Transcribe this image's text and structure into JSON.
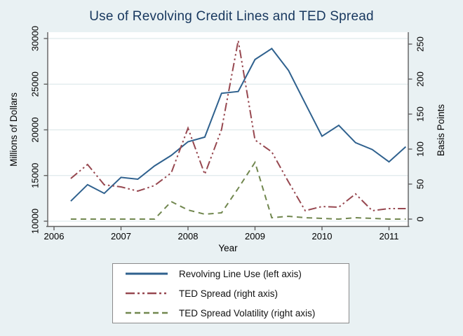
{
  "title": "Use of Revolving Credit Lines and TED Spread",
  "colors": {
    "background": "#e9f1f3",
    "plot_background": "#ffffff",
    "grid": "#dfe9ec",
    "axis": "#5f5f5f",
    "title": "#17375e",
    "tick_text": "#000000",
    "legend_border": "#8a8a8a"
  },
  "chart_data": {
    "type": "line",
    "title": "Use of Revolving Credit Lines and TED Spread",
    "xlabel": "Year",
    "ylabel_left": "Millions of Dollars",
    "ylabel_right": "Basis Points",
    "x_ticks": [
      2006,
      2007,
      2008,
      2009,
      2010,
      2011
    ],
    "y_left_ticks": [
      10000,
      15000,
      20000,
      25000,
      30000
    ],
    "y_right_ticks": [
      0,
      50,
      100,
      150,
      200,
      250
    ],
    "xlim": [
      2006,
      2011.3
    ],
    "ylim_left": [
      10000,
      30000
    ],
    "ylim_right": [
      0,
      250
    ],
    "grid": true,
    "legend_position": "bottom",
    "x": [
      2006.25,
      2006.5,
      2006.75,
      2007.0,
      2007.25,
      2007.5,
      2007.75,
      2008.0,
      2008.25,
      2008.5,
      2008.75,
      2009.0,
      2009.25,
      2009.5,
      2009.75,
      2010.0,
      2010.25,
      2010.5,
      2010.75,
      2011.0,
      2011.25
    ],
    "series": [
      {
        "name": "Revolving Line Use (left axis)",
        "axis": "left",
        "style": "solid",
        "color": "#2f618e",
        "values": [
          12200,
          14000,
          13050,
          14800,
          14600,
          16050,
          17200,
          18700,
          19200,
          24000,
          24200,
          27700,
          28900,
          26500,
          22900,
          19300,
          20500,
          18600,
          17850,
          16500,
          18150
        ]
      },
      {
        "name": "TED Spread (right axis)",
        "axis": "right",
        "style": "dash-dot",
        "color": "#974850",
        "values": [
          58,
          78,
          49,
          46,
          40,
          48,
          66,
          130,
          64,
          128,
          255,
          113,
          96,
          53,
          12,
          18,
          17,
          36,
          12,
          15,
          15
        ]
      },
      {
        "name": "TED Spread Volatility (right axis)",
        "axis": "right",
        "style": "dash",
        "color": "#71874f",
        "values": [
          0,
          0,
          0,
          0,
          0,
          0,
          25,
          13,
          7,
          9,
          44,
          81,
          2,
          4,
          2,
          1,
          0,
          2,
          1,
          0,
          0
        ]
      }
    ]
  },
  "legend": {
    "items": [
      {
        "label": "Revolving Line Use (left axis)"
      },
      {
        "label": "TED Spread (right axis)"
      },
      {
        "label": "TED Spread Volatility (right axis)"
      }
    ]
  }
}
